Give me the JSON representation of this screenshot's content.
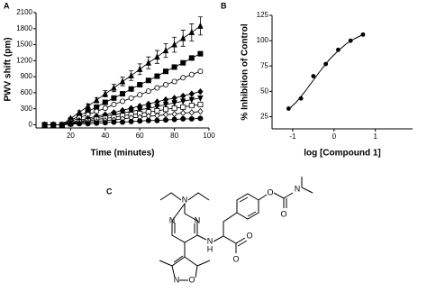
{
  "chart_data": [
    {
      "type": "line",
      "panel": "A",
      "xlabel": "Time (minutes)",
      "ylabel": "PWV shift (pm)",
      "x": [
        5,
        10,
        15,
        20,
        25,
        30,
        35,
        40,
        45,
        50,
        55,
        60,
        65,
        70,
        75,
        80,
        85,
        90,
        95
      ],
      "xlim": [
        0,
        100
      ],
      "xticks": [
        20,
        40,
        60,
        80,
        100
      ],
      "ylim": [
        -60,
        2100
      ],
      "yticks": [
        0,
        300,
        600,
        900,
        1200,
        1500,
        1800,
        2100
      ],
      "series": [
        {
          "color": "#000000",
          "marker": "triangle",
          "values": [
            0,
            0,
            0,
            120,
            230,
            350,
            460,
            580,
            690,
            810,
            920,
            1040,
            1160,
            1270,
            1390,
            1500,
            1620,
            1730,
            1850
          ],
          "errors": [
            0,
            0,
            0,
            20,
            30,
            40,
            50,
            60,
            70,
            80,
            90,
            100,
            110,
            120,
            130,
            140,
            150,
            160,
            170
          ]
        },
        {
          "color": "#000000",
          "marker": "square",
          "values": [
            0,
            0,
            0,
            80,
            170,
            250,
            330,
            420,
            500,
            580,
            670,
            750,
            830,
            910,
            1000,
            1080,
            1160,
            1250,
            1330
          ]
        },
        {
          "color": "#000000",
          "marker": "circle-open",
          "values": [
            0,
            0,
            0,
            60,
            130,
            190,
            250,
            310,
            380,
            440,
            500,
            560,
            630,
            690,
            750,
            810,
            880,
            940,
            1000
          ]
        },
        {
          "color": "#000000",
          "marker": "diamond",
          "values": [
            0,
            0,
            0,
            40,
            80,
            120,
            160,
            190,
            230,
            270,
            310,
            350,
            390,
            430,
            470,
            500,
            540,
            580,
            620
          ]
        },
        {
          "color": "#000000",
          "marker": "triangle-down",
          "values": [
            0,
            0,
            0,
            30,
            60,
            90,
            130,
            160,
            190,
            220,
            250,
            280,
            310,
            340,
            380,
            410,
            440,
            470,
            500
          ]
        },
        {
          "color": "#000000",
          "marker": "square-open",
          "values": [
            0,
            0,
            0,
            20,
            50,
            70,
            100,
            120,
            140,
            170,
            190,
            210,
            240,
            260,
            290,
            310,
            330,
            360,
            380
          ]
        },
        {
          "color": "#000000",
          "marker": "diamond-open",
          "values": [
            0,
            0,
            0,
            20,
            30,
            50,
            60,
            80,
            90,
            110,
            130,
            140,
            160,
            170,
            190,
            200,
            220,
            230,
            250
          ]
        },
        {
          "color": "#000000",
          "marker": "circle",
          "values": [
            0,
            0,
            0,
            10,
            20,
            20,
            30,
            40,
            50,
            50,
            60,
            70,
            80,
            80,
            90,
            100,
            110,
            110,
            120
          ]
        }
      ]
    },
    {
      "type": "scatter",
      "panel": "B",
      "xlabel": "log [Compound 1]",
      "ylabel": "% Inhibition of Control",
      "x": [
        -1.1,
        -0.8,
        -0.5,
        -0.2,
        0.1,
        0.4,
        0.7
      ],
      "values": [
        33,
        43,
        65,
        77,
        91,
        100,
        106
      ],
      "color": "#000000",
      "fit": {
        "x": [
          -1.1,
          -0.9,
          -0.7,
          -0.5,
          -0.3,
          -0.1,
          0.1,
          0.3,
          0.5,
          0.7
        ],
        "values": [
          32,
          40,
          50,
          61,
          72,
          82,
          90,
          97,
          102,
          106
        ]
      },
      "xlim": [
        -1.5,
        1.9
      ],
      "xticks": [
        -1,
        0,
        1
      ],
      "ylim": [
        13,
        125
      ],
      "yticks": [
        25,
        50,
        75,
        100,
        125
      ]
    }
  ],
  "structure": {
    "panel": "C",
    "atoms": [
      "N",
      "N",
      "N",
      "N",
      "H",
      "N",
      "O",
      "O",
      "O",
      "N",
      "O",
      "O"
    ]
  }
}
